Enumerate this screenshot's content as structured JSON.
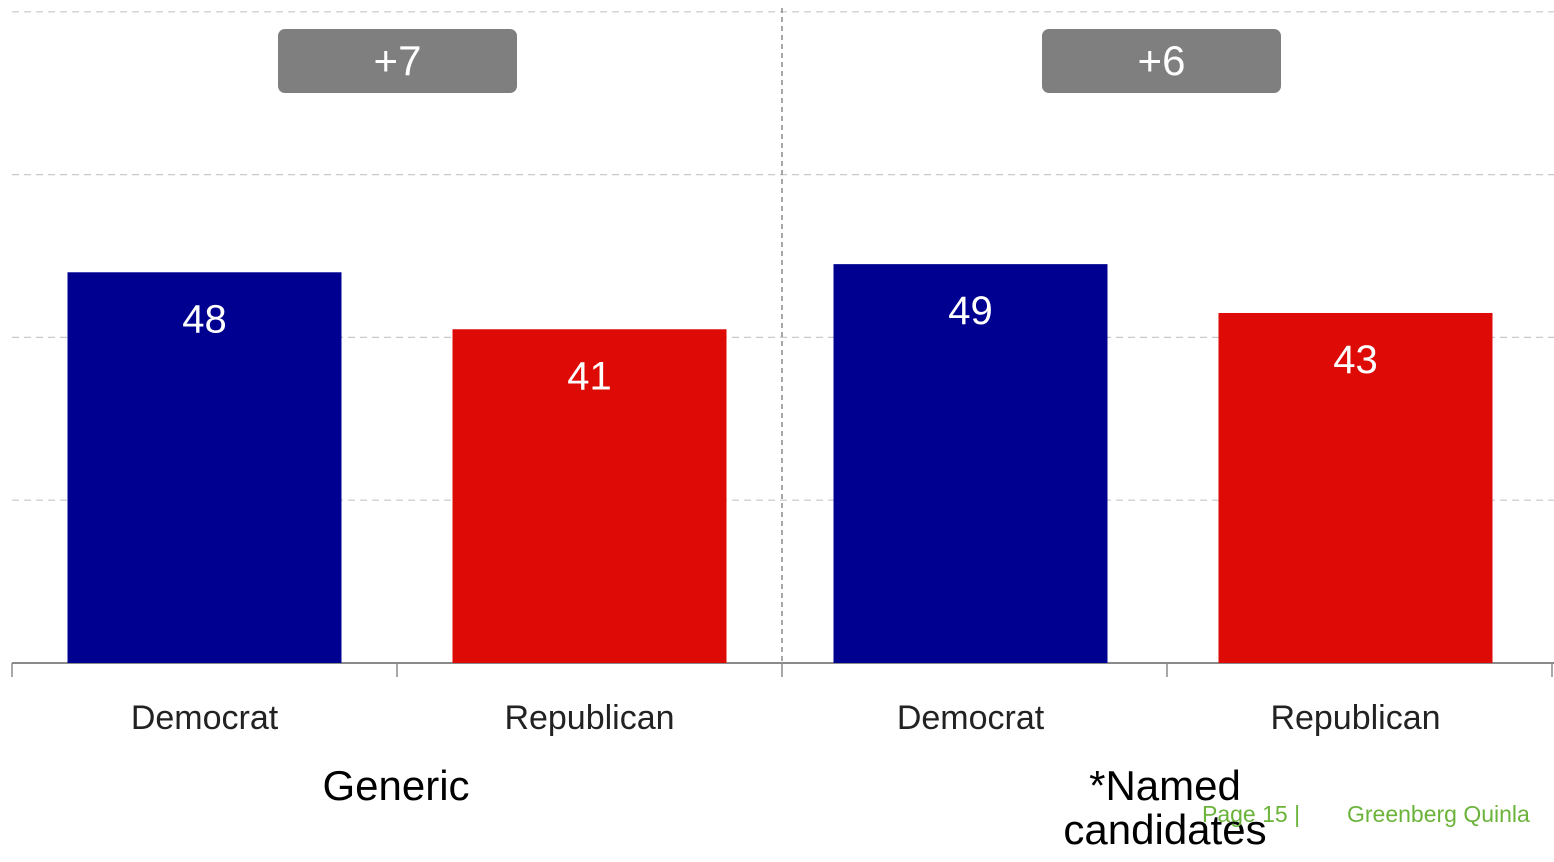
{
  "chart_data": {
    "type": "bar",
    "ylim": [
      0,
      80
    ],
    "grid": true,
    "groups": [
      {
        "label": "Generic",
        "margin": "+7",
        "categories": [
          "Democrat",
          "Republican"
        ],
        "values": [
          48,
          41
        ],
        "colors": [
          "#000090",
          "#de0a06"
        ]
      },
      {
        "label": "*Named candidates",
        "margin": "+6",
        "categories": [
          "Democrat",
          "Republican"
        ],
        "values": [
          49,
          43
        ],
        "colors": [
          "#000090",
          "#de0a06"
        ]
      }
    ]
  },
  "footer": {
    "page": "Page 15 |",
    "firm": "Greenberg Quinla",
    "color": "#6bb33a"
  }
}
